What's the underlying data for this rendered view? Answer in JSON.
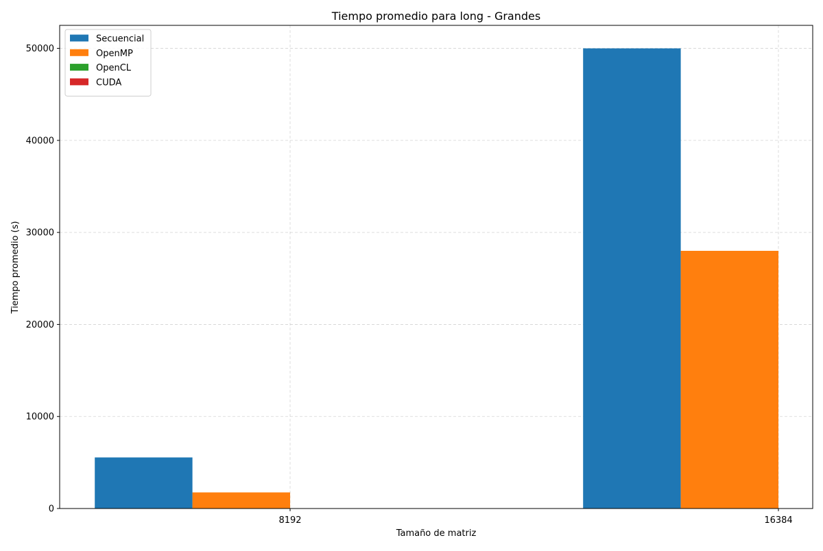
{
  "chart_data": {
    "type": "bar",
    "title": "Tiempo promedio para long - Grandes",
    "xlabel": "Tamaño de matriz",
    "ylabel": "Tiempo promedio (s)",
    "categories": [
      "8192",
      "16384"
    ],
    "series": [
      {
        "name": "Secuencial",
        "color": "#1f77b4",
        "values": [
          5550,
          50000
        ]
      },
      {
        "name": "OpenMP",
        "color": "#ff7f0e",
        "values": [
          1750,
          28000
        ]
      },
      {
        "name": "OpenCL",
        "color": "#2ca02c",
        "values": [
          0,
          0
        ]
      },
      {
        "name": "CUDA",
        "color": "#d62728",
        "values": [
          0,
          0
        ]
      }
    ],
    "ylim": [
      0,
      52500
    ],
    "yticks": [
      "0",
      "10000",
      "20000",
      "30000",
      "40000",
      "50000"
    ],
    "grid": true,
    "legend_position": "top-left"
  }
}
